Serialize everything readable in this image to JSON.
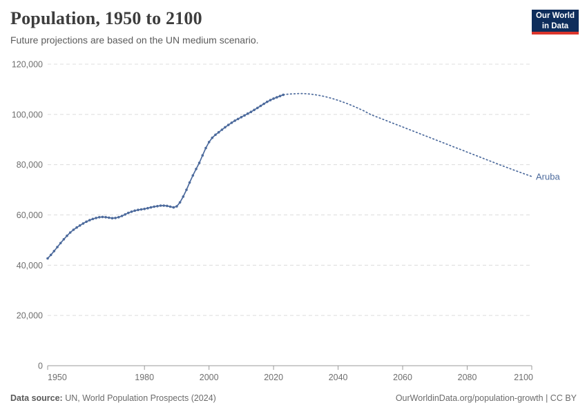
{
  "header": {
    "title": "Population, 1950 to 2100",
    "subtitle": "Future projections are based on the UN medium scenario.",
    "logo": {
      "line1": "Our World",
      "line2": "in Data",
      "bg_color": "#0e2d5b",
      "stripe_color": "#dc352c"
    }
  },
  "footer": {
    "source_label": "Data source:",
    "source_text": " UN, World Population Prospects (2024)",
    "credit": "OurWorldinData.org/population-growth | CC BY"
  },
  "chart_data": {
    "type": "line",
    "title": "Population, 1950 to 2100",
    "entity_label": "Aruba",
    "line_color": "#4c6a9c",
    "grid": "horizontal-dashed",
    "legend_position": "end-of-line-label",
    "xlim": [
      1950,
      2100
    ],
    "ylim": [
      0,
      120000
    ],
    "xticks": [
      1950,
      1980,
      2000,
      2020,
      2040,
      2060,
      2080,
      2100
    ],
    "yticks": [
      0,
      20000,
      40000,
      60000,
      80000,
      100000,
      120000
    ],
    "ytick_labels": [
      "0",
      "20,000",
      "40,000",
      "60,000",
      "80,000",
      "100,000",
      "120,000"
    ],
    "series": [
      {
        "name": "Aruba (estimates)",
        "style": "solid-with-markers",
        "x": [
          1950,
          1951,
          1952,
          1953,
          1954,
          1955,
          1956,
          1957,
          1958,
          1959,
          1960,
          1961,
          1962,
          1963,
          1964,
          1965,
          1966,
          1967,
          1968,
          1969,
          1970,
          1971,
          1972,
          1973,
          1974,
          1975,
          1976,
          1977,
          1978,
          1979,
          1980,
          1981,
          1982,
          1983,
          1984,
          1985,
          1986,
          1987,
          1988,
          1989,
          1990,
          1991,
          1992,
          1993,
          1994,
          1995,
          1996,
          1997,
          1998,
          1999,
          2000,
          2001,
          2002,
          2003,
          2004,
          2005,
          2006,
          2007,
          2008,
          2009,
          2010,
          2011,
          2012,
          2013,
          2014,
          2015,
          2016,
          2017,
          2018,
          2019,
          2020,
          2021,
          2022,
          2023
        ],
        "values": [
          42700,
          44100,
          45600,
          47200,
          48800,
          50300,
          51700,
          53000,
          54100,
          55000,
          55800,
          56600,
          57300,
          57900,
          58400,
          58800,
          59100,
          59200,
          59100,
          58900,
          58700,
          58800,
          59100,
          59600,
          60200,
          60800,
          61300,
          61700,
          62000,
          62200,
          62400,
          62700,
          63000,
          63300,
          63500,
          63700,
          63700,
          63600,
          63300,
          63000,
          63400,
          65000,
          67300,
          70000,
          72900,
          75700,
          78300,
          80700,
          83700,
          86600,
          89000,
          90700,
          91900,
          92900,
          93900,
          94900,
          95800,
          96700,
          97500,
          98200,
          98900,
          99600,
          100300,
          101000,
          101800,
          102600,
          103400,
          104200,
          105000,
          105700,
          106300,
          106800,
          107300,
          107800
        ]
      },
      {
        "name": "Aruba (UN medium projection)",
        "style": "dotted",
        "x": [
          2023,
          2024,
          2025,
          2026,
          2027,
          2028,
          2029,
          2030,
          2031,
          2032,
          2033,
          2034,
          2035,
          2036,
          2037,
          2038,
          2039,
          2040,
          2041,
          2042,
          2043,
          2044,
          2045,
          2046,
          2047,
          2048,
          2049,
          2050,
          2051,
          2052,
          2053,
          2054,
          2055,
          2056,
          2057,
          2058,
          2059,
          2060,
          2061,
          2062,
          2063,
          2064,
          2065,
          2066,
          2067,
          2068,
          2069,
          2070,
          2071,
          2072,
          2073,
          2074,
          2075,
          2076,
          2077,
          2078,
          2079,
          2080,
          2081,
          2082,
          2083,
          2084,
          2085,
          2086,
          2087,
          2088,
          2089,
          2090,
          2091,
          2092,
          2093,
          2094,
          2095,
          2096,
          2097,
          2098,
          2099,
          2100
        ],
        "values": [
          107800,
          108000,
          108100,
          108200,
          108250,
          108300,
          108300,
          108250,
          108150,
          108000,
          107800,
          107600,
          107350,
          107100,
          106750,
          106400,
          106000,
          105600,
          105150,
          104700,
          104200,
          103700,
          103150,
          102600,
          102000,
          101400,
          100700,
          100000,
          99500,
          99000,
          98500,
          98000,
          97500,
          97000,
          96500,
          96000,
          95500,
          95000,
          94500,
          94000,
          93500,
          93000,
          92500,
          92000,
          91500,
          91000,
          90500,
          90000,
          89500,
          89000,
          88500,
          88000,
          87500,
          87000,
          86500,
          86000,
          85500,
          85000,
          84500,
          84000,
          83500,
          83000,
          82500,
          82000,
          81500,
          81000,
          80500,
          80000,
          79520,
          79040,
          78560,
          78080,
          77600,
          77130,
          76660,
          76200,
          75750,
          75300
        ]
      }
    ]
  }
}
